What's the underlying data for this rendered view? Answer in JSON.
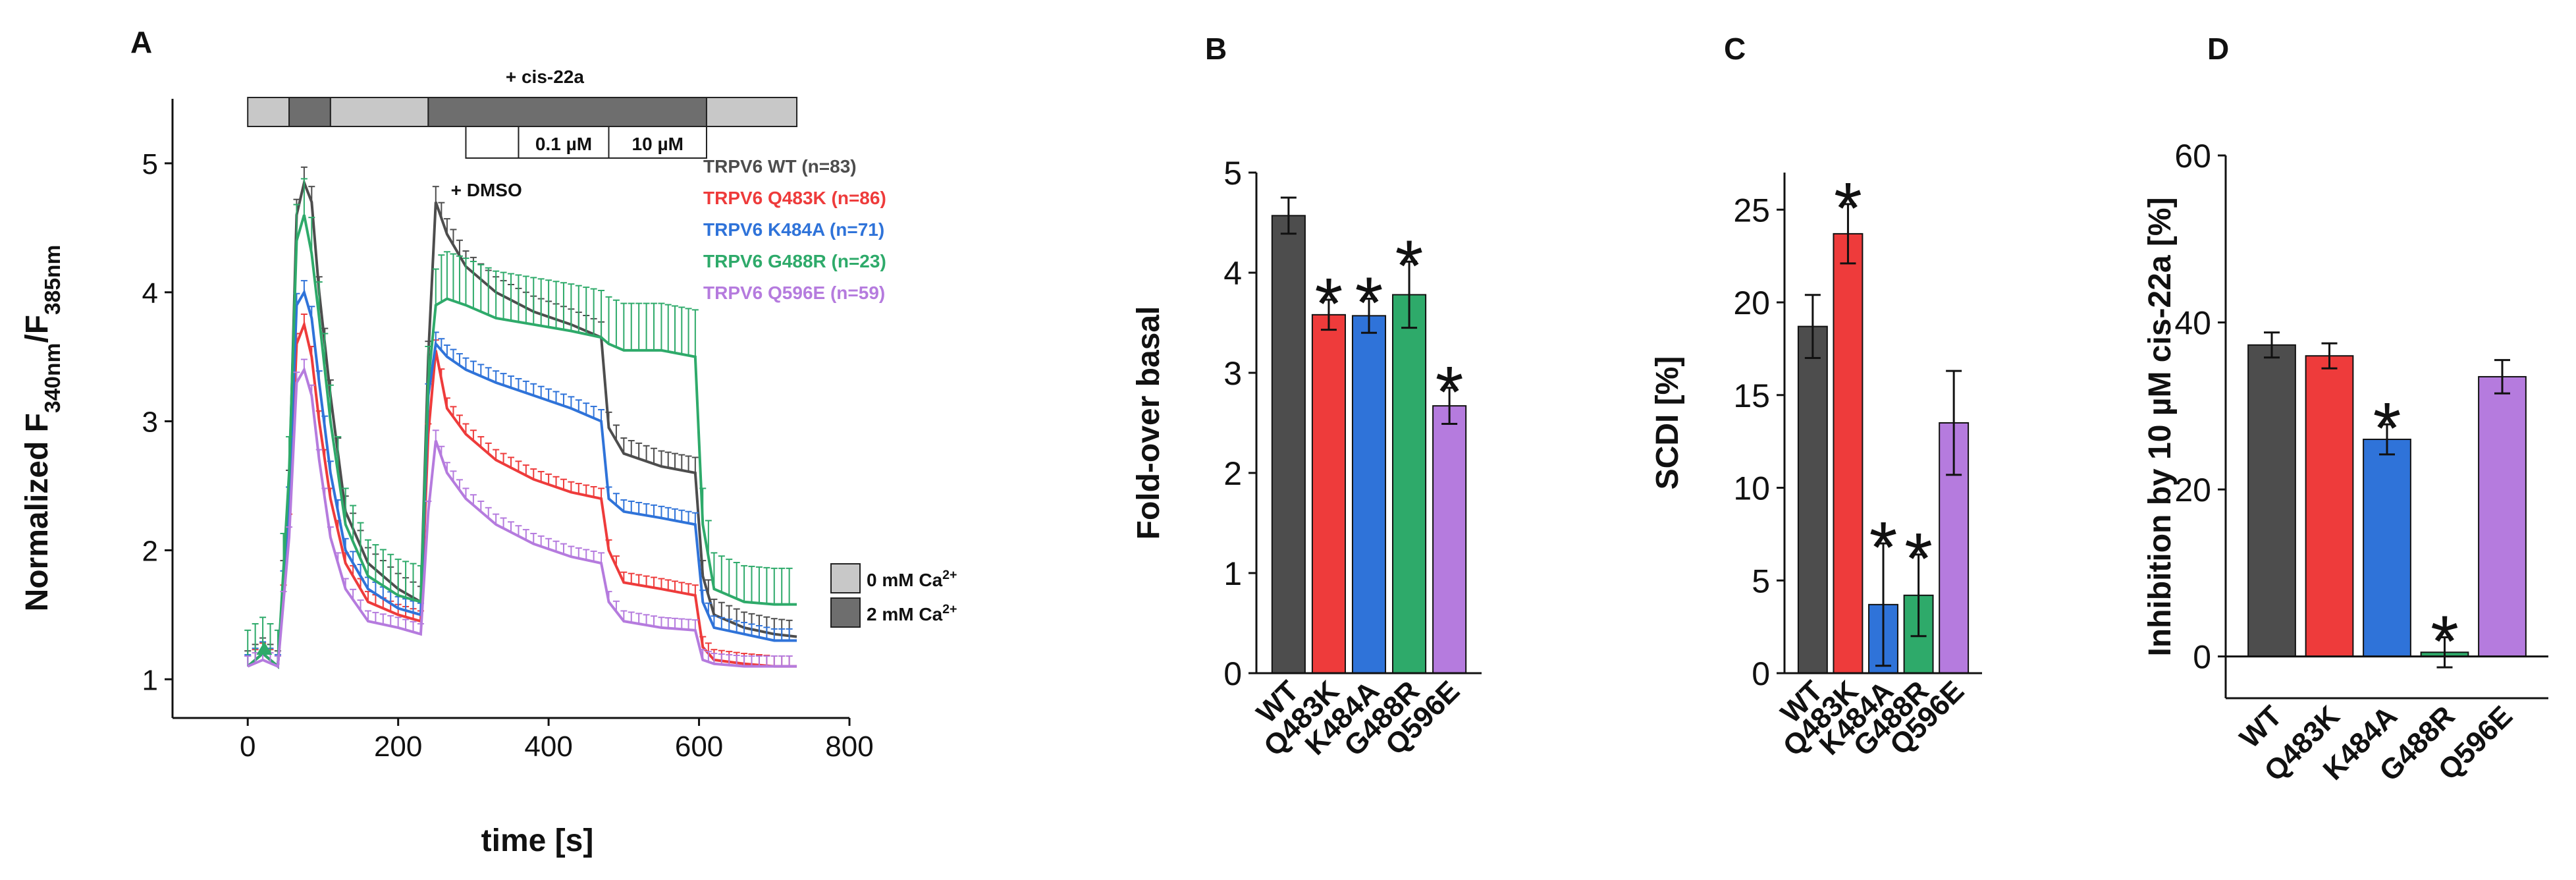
{
  "figure": {
    "colors": {
      "WT": "#4d4d4d",
      "Q483K": "#ee3b3b",
      "K484A": "#2f73d9",
      "G488R": "#2eaa6a",
      "Q596E": "#b57bde",
      "axis": "#111111",
      "light_gray": "#c8c8c8",
      "dark_gray": "#6e6e6e"
    }
  },
  "chart_data": [
    {
      "panel": "A",
      "type": "line",
      "xlabel": "time [s]",
      "ylabel": "Normalized F340nm/F385nm",
      "xlim": [
        -100,
        800
      ],
      "ylim": [
        0.7,
        5.5
      ],
      "xticks": [
        0,
        200,
        400,
        600,
        800
      ],
      "yticks": [
        1,
        2,
        3,
        4,
        5
      ],
      "annotations": {
        "top_label": "+ cis-22a",
        "dmso_label": "+ DMSO",
        "dose_1": "0.1 µM",
        "dose_2": "10 µM",
        "legend_light": "0 mM Ca2+",
        "legend_dark": "2 mM Ca2+"
      },
      "x": [
        0,
        20,
        40,
        55,
        65,
        75,
        85,
        95,
        110,
        130,
        160,
        200,
        230,
        240,
        250,
        265,
        290,
        330,
        380,
        430,
        470,
        480,
        500,
        550,
        595,
        605,
        620,
        660,
        700,
        730
      ],
      "series": [
        {
          "name": "TRPV6 WT (n=83)",
          "key": "WT",
          "values": [
            1.1,
            1.2,
            1.1,
            2.5,
            4.6,
            4.85,
            4.7,
            4.0,
            3.2,
            2.3,
            1.9,
            1.7,
            1.6,
            3.5,
            4.7,
            4.45,
            4.2,
            4.0,
            3.85,
            3.75,
            3.65,
            2.95,
            2.75,
            2.65,
            2.6,
            1.8,
            1.5,
            1.4,
            1.35,
            1.33
          ]
        },
        {
          "name": "TRPV6 Q483K (n=86)",
          "key": "Q483K",
          "values": [
            1.1,
            1.2,
            1.1,
            2.2,
            3.6,
            3.75,
            3.5,
            3.0,
            2.4,
            1.9,
            1.6,
            1.5,
            1.45,
            2.9,
            3.55,
            3.1,
            2.9,
            2.7,
            2.55,
            2.45,
            2.4,
            2.0,
            1.75,
            1.7,
            1.65,
            1.25,
            1.15,
            1.12,
            1.1,
            1.1
          ]
        },
        {
          "name": "TRPV6 K484A (n=71)",
          "key": "K484A",
          "values": [
            1.1,
            1.2,
            1.1,
            2.4,
            3.9,
            4.0,
            3.8,
            3.3,
            2.6,
            2.0,
            1.7,
            1.55,
            1.5,
            3.2,
            3.6,
            3.5,
            3.4,
            3.3,
            3.2,
            3.1,
            3.0,
            2.4,
            2.3,
            2.25,
            2.2,
            1.6,
            1.4,
            1.35,
            1.3,
            1.3
          ]
        },
        {
          "name": "TRPV6 G488R (n=23)",
          "key": "G488R",
          "values": [
            1.1,
            1.2,
            1.1,
            2.6,
            4.4,
            4.6,
            4.3,
            3.8,
            3.0,
            2.2,
            1.8,
            1.65,
            1.6,
            3.3,
            3.9,
            3.95,
            3.9,
            3.8,
            3.75,
            3.7,
            3.65,
            3.6,
            3.55,
            3.55,
            3.5,
            2.2,
            1.7,
            1.6,
            1.58,
            1.58
          ]
        },
        {
          "name": "TRPV6 Q596E (n=59)",
          "key": "Q596E",
          "values": [
            1.1,
            1.15,
            1.1,
            2.1,
            3.3,
            3.4,
            3.2,
            2.7,
            2.1,
            1.7,
            1.45,
            1.4,
            1.35,
            2.3,
            2.85,
            2.6,
            2.4,
            2.2,
            2.05,
            1.95,
            1.9,
            1.6,
            1.45,
            1.4,
            1.38,
            1.15,
            1.12,
            1.1,
            1.1,
            1.1
          ]
        }
      ]
    },
    {
      "panel": "B",
      "type": "bar",
      "ylabel": "Fold-over basal",
      "ylim": [
        0,
        5
      ],
      "yticks": [
        0,
        1,
        2,
        3,
        4,
        5
      ],
      "categories": [
        "WT",
        "Q483K",
        "K484A",
        "G488R",
        "Q596E"
      ],
      "values": [
        4.57,
        3.58,
        3.57,
        3.78,
        2.67
      ],
      "errors": [
        0.18,
        0.15,
        0.17,
        0.33,
        0.18
      ],
      "significant": [
        false,
        true,
        true,
        true,
        true
      ]
    },
    {
      "panel": "C",
      "type": "bar",
      "ylabel": "SCDI [%]",
      "ylim": [
        0,
        27
      ],
      "yticks": [
        0,
        5,
        10,
        15,
        20,
        25
      ],
      "categories": [
        "WT",
        "Q483K",
        "K484A",
        "G488R",
        "Q596E"
      ],
      "values": [
        18.7,
        23.7,
        3.7,
        4.2,
        13.5
      ],
      "errors": [
        1.7,
        1.6,
        3.3,
        2.2,
        2.8
      ],
      "significant": [
        false,
        true,
        true,
        true,
        false
      ]
    },
    {
      "panel": "D",
      "type": "bar",
      "ylabel": "Inhibition by 10 µM cis-22a [%]",
      "ylim": [
        -5,
        60
      ],
      "yticks": [
        0,
        20,
        40,
        60
      ],
      "categories": [
        "WT",
        "Q483K",
        "K484A",
        "G488R",
        "Q596E"
      ],
      "values": [
        37.3,
        36.0,
        26.0,
        0.5,
        33.5
      ],
      "errors": [
        1.5,
        1.5,
        1.8,
        1.8,
        2.0
      ],
      "significant": [
        false,
        false,
        true,
        true,
        false
      ]
    }
  ]
}
